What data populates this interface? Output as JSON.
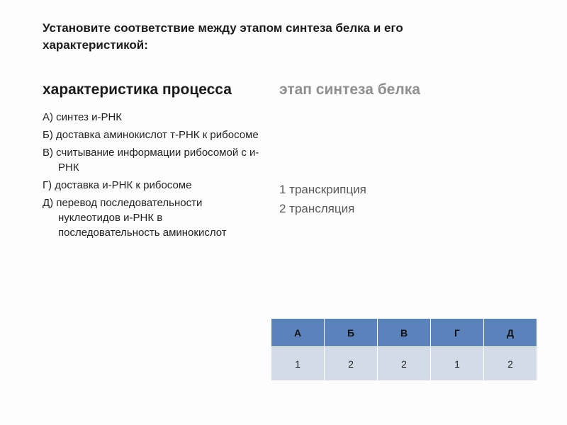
{
  "title": "Установите соответствие между этапом синтеза белка и его характеристикой:",
  "left": {
    "heading": "характеристика процесса",
    "items": [
      "А) синтез и-РНК",
      "Б) доставка аминокислот т-РНК к рибосоме",
      "В) считывание информации рибосомой с и-РНК",
      "Г) доставка и-РНК к рибосоме",
      "Д) перевод последовательности нуклеотидов и-РНК  в последовательность аминокислот"
    ]
  },
  "right": {
    "heading": "этап синтеза белка",
    "items": [
      "1 транскрипция",
      "2 трансляция"
    ]
  },
  "table": {
    "headers": [
      "А",
      "Б",
      "В",
      "Г",
      "Д"
    ],
    "answers": [
      "1",
      "2",
      "2",
      "1",
      "2"
    ],
    "header_bg": "#5a83bb",
    "cell_bg": "#d3dbe8",
    "border_color": "#fefefe"
  }
}
